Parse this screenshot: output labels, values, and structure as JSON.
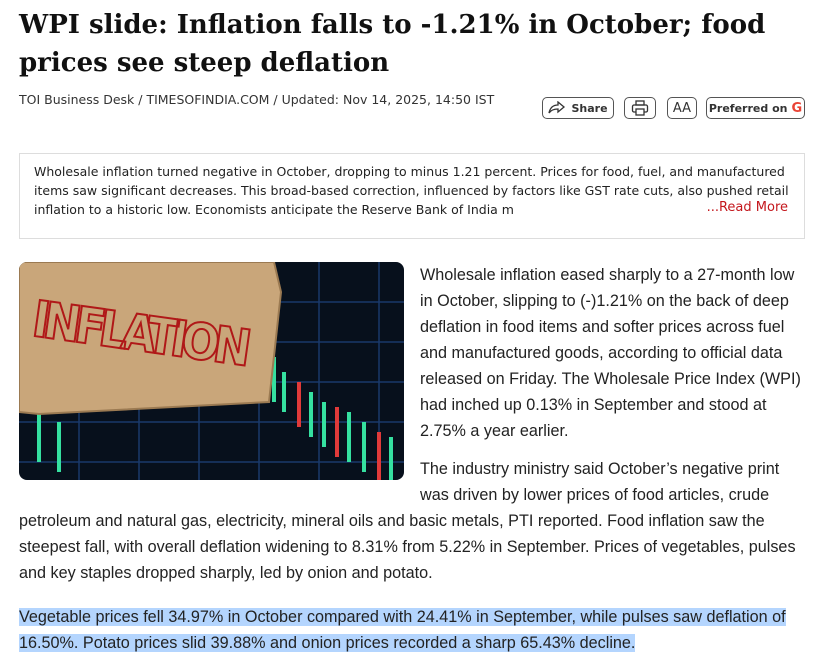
{
  "header": {
    "title": "WPI slide: Inflation falls to -1.21% in October; food prices see steep deflation",
    "byline": "TOI Business Desk / TIMESOFINDIA.COM / Updated: Nov 14, 2025, 14:50 IST"
  },
  "actions": {
    "share": "Share",
    "font_size": "AA",
    "preferred": "Preferred on",
    "preferred_logo": "G"
  },
  "summary": {
    "text": "Wholesale inflation turned negative in October, dropping to minus 1.21 percent. Prices for food, fuel, and manufactured items saw significant decreases. This broad-based correction, influenced by factors like GST rate cuts, also pushed retail inflation to a historic low. Economists anticipate the Reserve Bank of India m",
    "read_more": "...Read More"
  },
  "image": {
    "sign_text": "INFLATION"
  },
  "paragraphs": [
    "Wholesale inflation eased sharply to a 27-month low in October, slipping to (-)1.21% on the back of deep deflation in food items and softer prices across fuel and manufactured goods, according to official data released on Friday. The Wholesale Price Index (WPI) had inched up 0.13% in September and stood at 2.75% a year earlier.",
    "The industry ministry said October’s negative print was driven by lower prices of food articles, crude petroleum and natural gas, electricity, mineral oils and basic metals, PTI reported. Food inflation saw the steepest fall, with overall deflation widening to 8.31% from 5.22% in September. Prices of vegetables, pulses and key staples dropped sharply, led by onion and potato.",
    "Vegetable prices fell 34.97% in October compared with 24.41% in September, while pulses saw deflation of 16.50%. Potato prices slid 39.88% and onion prices recorded a sharp 65.43% decline."
  ]
}
